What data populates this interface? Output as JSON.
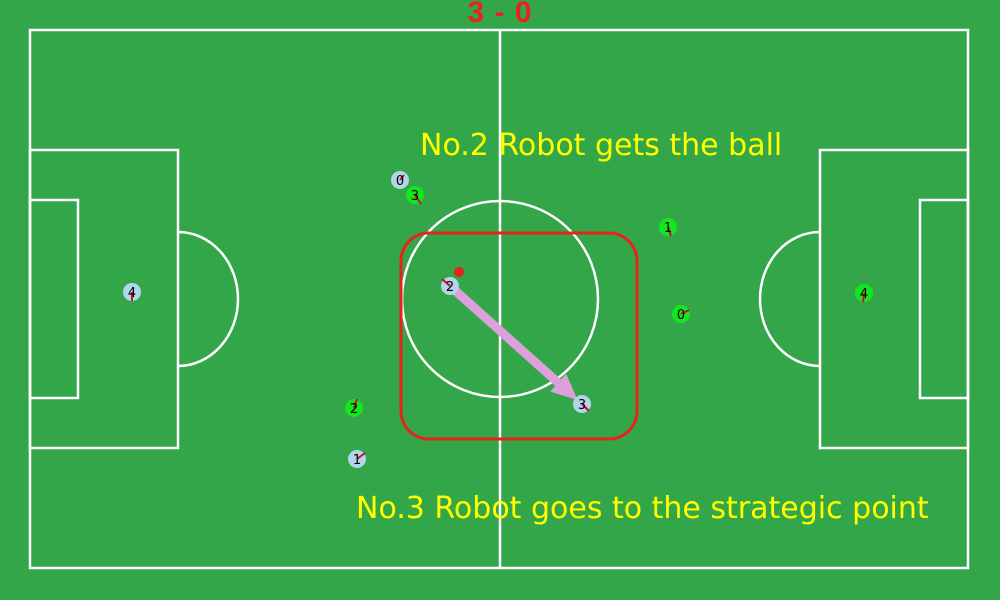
{
  "scoreboard": {
    "score": "3 - 0",
    "color": "#e8231c"
  },
  "captions": {
    "top": "No.2 Robot gets the ball",
    "bottom": "No.3 Robot goes to the strategic point",
    "color": "#ffff00"
  },
  "colors": {
    "pitch": "#32a648",
    "lines": "#ffffff",
    "team_blue": "#b3d5ea",
    "team_green": "#12e61e",
    "ball": "#e8231c",
    "highlight_box": "#e8231c",
    "pass_arrow": "#dda0dd",
    "heading_marker": "#c8102e"
  },
  "robots": {
    "blue": [
      {
        "label": "0"
      },
      {
        "label": "1"
      },
      {
        "label": "2"
      },
      {
        "label": "3"
      },
      {
        "label": "4"
      }
    ],
    "green": [
      {
        "label": "0"
      },
      {
        "label": "1"
      },
      {
        "label": "2"
      },
      {
        "label": "3"
      },
      {
        "label": "4"
      }
    ]
  },
  "ball": {
    "name": "ball"
  },
  "pass_arrow": {
    "from": "blue robot 2",
    "to": "blue robot 3"
  }
}
